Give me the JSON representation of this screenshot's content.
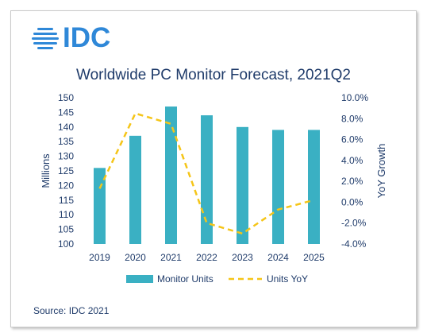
{
  "logo": {
    "text": "IDC",
    "color": "#2f88d8"
  },
  "chart_data": {
    "type": "bar",
    "title": "Worldwide PC Monitor Forecast, 2021Q2",
    "categories": [
      "2019",
      "2020",
      "2021",
      "2022",
      "2023",
      "2024",
      "2025"
    ],
    "series": [
      {
        "name": "Monitor Units",
        "type": "bar",
        "axis": "left",
        "color": "#3ab0c3",
        "values": [
          126,
          137,
          147,
          144,
          140,
          139,
          139
        ]
      },
      {
        "name": "Units YoY",
        "type": "line",
        "style": "dashed",
        "axis": "right",
        "color": "#f5c518",
        "values": [
          1.3,
          8.5,
          7.5,
          -2.0,
          -3.0,
          -0.7,
          0.2
        ]
      }
    ],
    "ylabel": "Millions",
    "y2label": "YoY Growth",
    "ylim": [
      100,
      150
    ],
    "y2lim": [
      -4.0,
      10.0
    ],
    "yticks": [
      "100",
      "105",
      "110",
      "115",
      "120",
      "125",
      "130",
      "135",
      "140",
      "145",
      "150"
    ],
    "y2ticks": [
      "-4.0%",
      "-2.0%",
      "0.0%",
      "2.0%",
      "4.0%",
      "6.0%",
      "8.0%",
      "10.0%"
    ],
    "grid": false,
    "legend_position": "bottom"
  },
  "source": "Source: IDC 2021"
}
